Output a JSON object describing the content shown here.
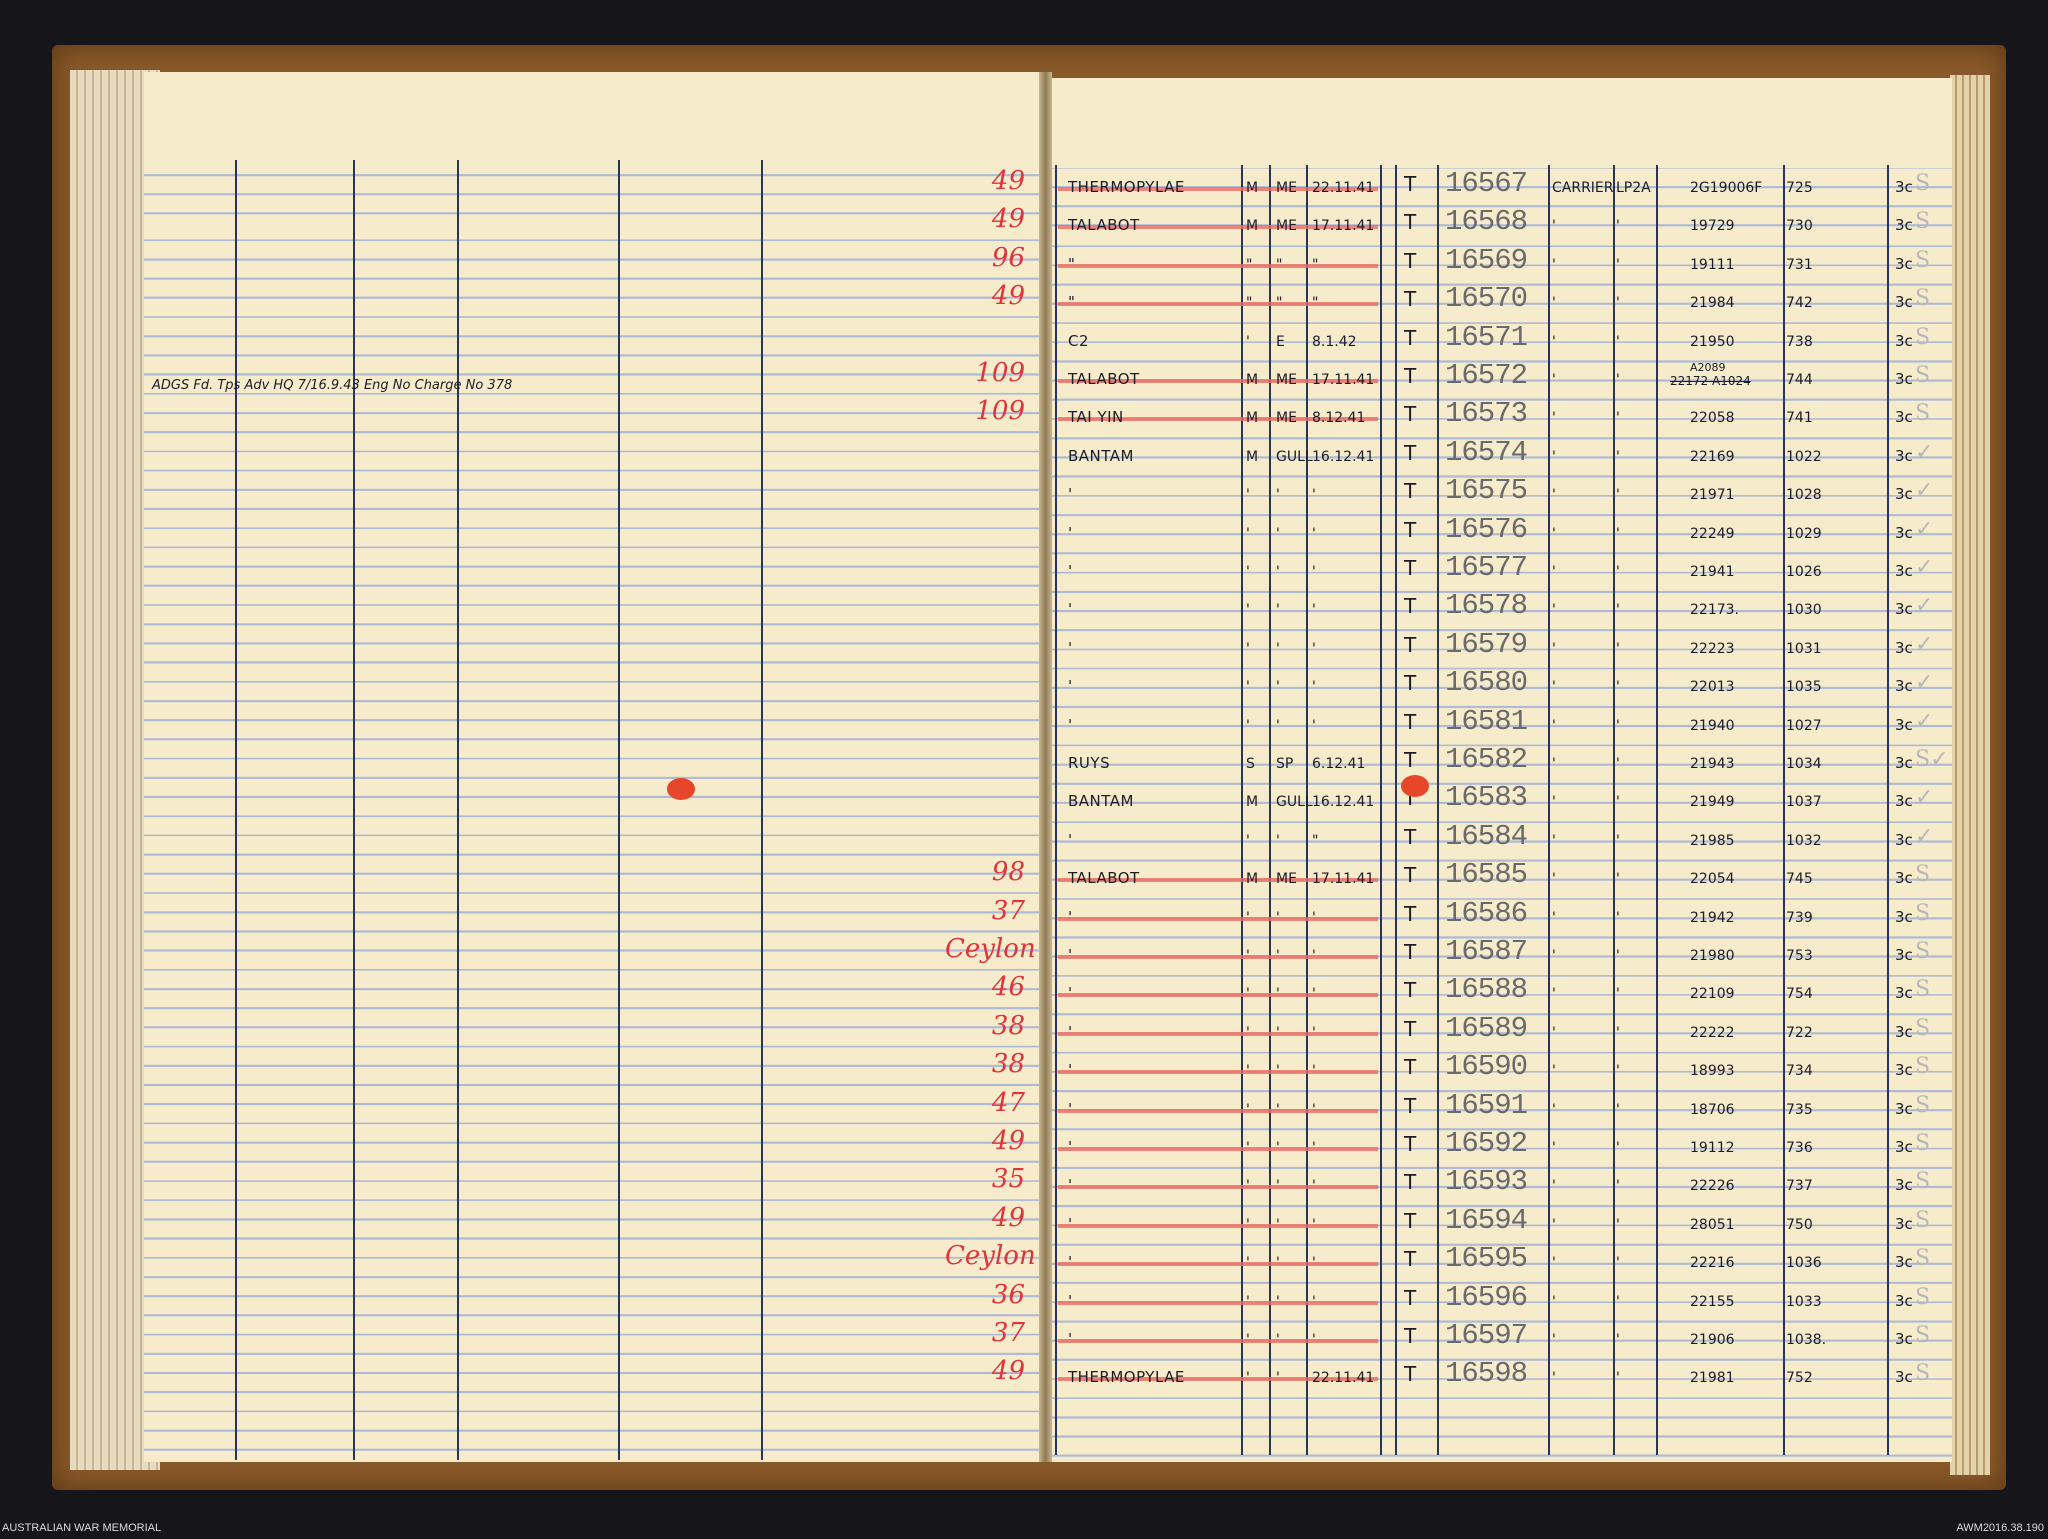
{
  "footer": {
    "left": "AUSTRALIAN WAR MEMORIAL",
    "right": "AWM2016.38.190"
  },
  "left_page": {
    "note": "ADGS Fd. Tps Adv HQ 7/16.9.43 Eng No Charge No 378"
  },
  "colors": {
    "ink": "#1c1c26",
    "red_pencil": "#e0333a",
    "paper": "#f6ebcb",
    "rule": "#aebbd4"
  },
  "rows": [
    {
      "red": "49",
      "ship": "THERMOPYLAE",
      "a": "M",
      "b": "ME",
      "date": "22.11.41",
      "t": "T",
      "number": "16567",
      "c1": "CARRIER",
      "c2": "LP2A",
      "serial": "2G19006F",
      "ref": "725",
      "tick": "3c",
      "mark": "S",
      "struck": true
    },
    {
      "red": "49",
      "ship": "TALABOT",
      "a": "M",
      "b": "ME",
      "date": "17.11.41",
      "t": "T",
      "number": "16568",
      "c1": "'",
      "c2": "'",
      "serial": "19729",
      "ref": "730",
      "tick": "3c",
      "mark": "S",
      "struck": true
    },
    {
      "red": "96",
      "ship": "\"",
      "a": "\"",
      "b": "\"",
      "date": "\"",
      "t": "T",
      "number": "16569",
      "c1": "'",
      "c2": "'",
      "serial": "19111",
      "ref": "731",
      "tick": "3c",
      "mark": "S",
      "struck": true
    },
    {
      "red": "49",
      "ship": "\"",
      "a": "\"",
      "b": "\"",
      "date": "\"",
      "t": "T",
      "number": "16570",
      "c1": "'",
      "c2": "'",
      "serial": "21984",
      "ref": "742",
      "tick": "3c",
      "mark": "S",
      "struck": true
    },
    {
      "red": "",
      "ship": "C2",
      "a": "'",
      "b": "E",
      "date": "8.1.42",
      "t": "T",
      "number": "16571",
      "c1": "'",
      "c2": "'",
      "serial": "21950",
      "ref": "738",
      "tick": "3c",
      "mark": "S",
      "struck": false
    },
    {
      "red": "109",
      "ship": "TALABOT",
      "a": "M",
      "b": "ME",
      "date": "17.11.41",
      "t": "T",
      "number": "16572",
      "c1": "'",
      "c2": "'",
      "serial": "A2089",
      "serial_struck": "22172 A1024",
      "ref": "744",
      "tick": "3c",
      "mark": "S",
      "struck": true
    },
    {
      "red": "109",
      "ship": "TAI YIN",
      "a": "M",
      "b": "ME",
      "date": "8.12.41",
      "t": "T",
      "number": "16573",
      "c1": "'",
      "c2": "'",
      "serial": "22058",
      "ref": "741",
      "tick": "3c",
      "mark": "S",
      "struck": true
    },
    {
      "red": "",
      "ship": "BANTAM",
      "a": "M",
      "b": "GULL",
      "date": "16.12.41",
      "t": "T",
      "number": "16574",
      "c1": "'",
      "c2": "'",
      "serial": "22169",
      "ref": "1022",
      "tick": "3c",
      "mark": "✓",
      "struck": false
    },
    {
      "red": "",
      "ship": "'",
      "a": "'",
      "b": "'",
      "date": "'",
      "t": "T",
      "number": "16575",
      "c1": "'",
      "c2": "'",
      "serial": "21971",
      "ref": "1028",
      "tick": "3c",
      "mark": "✓",
      "struck": false
    },
    {
      "red": "",
      "ship": "'",
      "a": "'",
      "b": "'",
      "date": "'",
      "t": "T",
      "number": "16576",
      "c1": "'",
      "c2": "'",
      "serial": "22249",
      "ref": "1029",
      "tick": "3c",
      "mark": "✓",
      "struck": false
    },
    {
      "red": "",
      "ship": "'",
      "a": "'",
      "b": "'",
      "date": "'",
      "t": "T",
      "number": "16577",
      "c1": "'",
      "c2": "'",
      "serial": "21941",
      "ref": "1026",
      "tick": "3c",
      "mark": "✓",
      "struck": false
    },
    {
      "red": "",
      "ship": "'",
      "a": "'",
      "b": "'",
      "date": "'",
      "t": "T",
      "number": "16578",
      "c1": "'",
      "c2": "'",
      "serial": "22173.",
      "ref": "1030",
      "tick": "3c",
      "mark": "✓",
      "struck": false
    },
    {
      "red": "",
      "ship": "'",
      "a": "'",
      "b": "'",
      "date": "'",
      "t": "T",
      "number": "16579",
      "c1": "'",
      "c2": "'",
      "serial": "22223",
      "ref": "1031",
      "tick": "3c",
      "mark": "✓",
      "struck": false
    },
    {
      "red": "",
      "ship": "'",
      "a": "'",
      "b": "'",
      "date": "'",
      "t": "T",
      "number": "16580",
      "c1": "'",
      "c2": "'",
      "serial": "22013",
      "ref": "1035",
      "tick": "3c",
      "mark": "✓",
      "struck": false
    },
    {
      "red": "",
      "ship": "'",
      "a": "'",
      "b": "'",
      "date": "'",
      "t": "T",
      "number": "16581",
      "c1": "'",
      "c2": "'",
      "serial": "21940",
      "ref": "1027",
      "tick": "3c",
      "mark": "✓",
      "struck": false
    },
    {
      "red": "",
      "ship": "RUYS",
      "a": "S",
      "b": "SP",
      "date": "6.12.41",
      "t": "T",
      "number": "16582",
      "c1": "'",
      "c2": "'",
      "serial": "21943",
      "ref": "1034",
      "tick": "3c",
      "mark": "S✓",
      "struck": false
    },
    {
      "red": "",
      "ship": "BANTAM",
      "a": "M",
      "b": "GULL",
      "date": "16.12.41",
      "t": "T",
      "number": "16583",
      "c1": "'",
      "c2": "'",
      "serial": "21949",
      "ref": "1037",
      "tick": "3c",
      "mark": "✓",
      "struck": false
    },
    {
      "red": "",
      "ship": "'",
      "a": "'",
      "b": "'",
      "date": "\"",
      "t": "T",
      "number": "16584",
      "c1": "'",
      "c2": "'",
      "serial": "21985",
      "ref": "1032",
      "tick": "3c",
      "mark": "✓",
      "struck": false
    },
    {
      "red": "98",
      "ship": "TALABOT",
      "a": "M",
      "b": "ME",
      "date": "17.11.41",
      "t": "T",
      "number": "16585",
      "c1": "'",
      "c2": "'",
      "serial": "22054",
      "ref": "745",
      "tick": "3c",
      "mark": "S",
      "struck": true
    },
    {
      "red": "37",
      "ship": "'",
      "a": "'",
      "b": "'",
      "date": "'",
      "t": "T",
      "number": "16586",
      "c1": "'",
      "c2": "'",
      "serial": "21942",
      "ref": "739",
      "tick": "3c",
      "mark": "S",
      "struck": true
    },
    {
      "red": "Ceylon",
      "ship": "'",
      "a": "'",
      "b": "'",
      "date": "'",
      "t": "T",
      "number": "16587",
      "c1": "'",
      "c2": "'",
      "serial": "21980",
      "ref": "753",
      "tick": "3c",
      "mark": "S",
      "struck": true
    },
    {
      "red": "46",
      "ship": "'",
      "a": "'",
      "b": "'",
      "date": "'",
      "t": "T",
      "number": "16588",
      "c1": "'",
      "c2": "'",
      "serial": "22109",
      "ref": "754",
      "tick": "3c",
      "mark": "S",
      "struck": true
    },
    {
      "red": "38",
      "ship": "'",
      "a": "'",
      "b": "'",
      "date": "'",
      "t": "T",
      "number": "16589",
      "c1": "'",
      "c2": "'",
      "serial": "22222",
      "ref": "722",
      "tick": "3c",
      "mark": "S",
      "struck": true
    },
    {
      "red": "38",
      "ship": "'",
      "a": "'",
      "b": "'",
      "date": "'",
      "t": "T",
      "number": "16590",
      "c1": "'",
      "c2": "'",
      "serial": "18993",
      "ref": "734",
      "tick": "3c",
      "mark": "S",
      "struck": true
    },
    {
      "red": "47",
      "ship": "'",
      "a": "'",
      "b": "'",
      "date": "'",
      "t": "T",
      "number": "16591",
      "c1": "'",
      "c2": "'",
      "serial": "18706",
      "ref": "735",
      "tick": "3c",
      "mark": "S",
      "struck": true
    },
    {
      "red": "49",
      "ship": "'",
      "a": "'",
      "b": "'",
      "date": "'",
      "t": "T",
      "number": "16592",
      "c1": "'",
      "c2": "'",
      "serial": "19112",
      "ref": "736",
      "tick": "3c",
      "mark": "S",
      "struck": true
    },
    {
      "red": "35",
      "ship": "'",
      "a": "'",
      "b": "'",
      "date": "'",
      "t": "T",
      "number": "16593",
      "c1": "'",
      "c2": "'",
      "serial": "22226",
      "ref": "737",
      "tick": "3c",
      "mark": "S",
      "struck": true
    },
    {
      "red": "49",
      "ship": "'",
      "a": "'",
      "b": "'",
      "date": "'",
      "t": "T",
      "number": "16594",
      "c1": "'",
      "c2": "'",
      "serial": "28051",
      "ref": "750",
      "tick": "3c",
      "mark": "S",
      "struck": true
    },
    {
      "red": "Ceylon",
      "ship": "'",
      "a": "'",
      "b": "'",
      "date": "'",
      "t": "T",
      "number": "16595",
      "c1": "'",
      "c2": "'",
      "serial": "22216",
      "ref": "1036",
      "tick": "3c",
      "mark": "S",
      "struck": true
    },
    {
      "red": "36",
      "ship": "'",
      "a": "'",
      "b": "'",
      "date": "'",
      "t": "T",
      "number": "16596",
      "c1": "'",
      "c2": "'",
      "serial": "22155",
      "ref": "1033",
      "tick": "3c",
      "mark": "S",
      "struck": true
    },
    {
      "red": "37",
      "ship": "'",
      "a": "'",
      "b": "'",
      "date": "'",
      "t": "T",
      "number": "16597",
      "c1": "'",
      "c2": "'",
      "serial": "21906",
      "ref": "1038.",
      "tick": "3c",
      "mark": "S",
      "struck": true
    },
    {
      "red": "49",
      "ship": "THERMOPYLAE",
      "a": "'",
      "b": "'",
      "date": "22.11.41",
      "t": "T",
      "number": "16598",
      "c1": "'",
      "c2": "'",
      "serial": "21981",
      "ref": "752",
      "tick": "3c",
      "mark": "S",
      "struck": true
    }
  ]
}
